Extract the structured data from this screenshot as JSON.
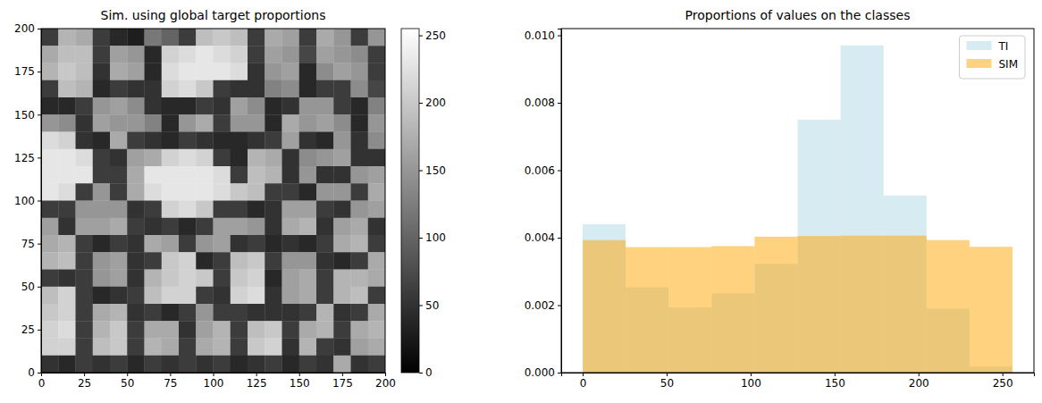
{
  "chart_data": [
    {
      "type": "heatmap",
      "title": "Sim. using global target proportions",
      "color": "gray",
      "xlim": [
        0,
        200
      ],
      "ylim": [
        0,
        200
      ],
      "xticks": [
        0,
        25,
        50,
        75,
        100,
        125,
        150,
        175,
        200
      ],
      "yticks": [
        0,
        25,
        50,
        75,
        100,
        125,
        150,
        175,
        200
      ],
      "cells": [
        [
          60,
          180,
          170,
          60,
          40,
          30,
          120,
          100,
          60,
          190,
          200,
          190,
          60,
          170,
          160,
          60,
          170,
          150,
          60,
          150
        ],
        [
          170,
          190,
          190,
          60,
          160,
          150,
          40,
          210,
          220,
          230,
          220,
          210,
          60,
          160,
          150,
          70,
          160,
          150,
          140,
          60
        ],
        [
          180,
          200,
          190,
          50,
          170,
          160,
          40,
          220,
          230,
          230,
          230,
          220,
          50,
          150,
          160,
          40,
          140,
          160,
          150,
          60
        ],
        [
          60,
          190,
          180,
          40,
          60,
          50,
          50,
          210,
          220,
          200,
          60,
          50,
          50,
          130,
          140,
          40,
          60,
          60,
          140,
          70
        ],
        [
          40,
          40,
          60,
          150,
          160,
          140,
          50,
          40,
          40,
          60,
          50,
          160,
          140,
          40,
          50,
          150,
          150,
          60,
          40,
          130
        ],
        [
          150,
          140,
          50,
          160,
          150,
          150,
          130,
          40,
          150,
          170,
          60,
          150,
          150,
          40,
          170,
          150,
          160,
          140,
          40,
          150
        ],
        [
          220,
          210,
          50,
          40,
          170,
          60,
          50,
          40,
          60,
          50,
          40,
          40,
          50,
          60,
          160,
          50,
          40,
          150,
          50,
          140
        ],
        [
          230,
          230,
          220,
          60,
          50,
          160,
          170,
          210,
          220,
          210,
          60,
          40,
          180,
          170,
          50,
          140,
          150,
          160,
          50,
          50
        ],
        [
          230,
          230,
          230,
          60,
          60,
          170,
          230,
          230,
          230,
          230,
          220,
          60,
          190,
          180,
          50,
          150,
          50,
          50,
          150,
          160
        ],
        [
          230,
          220,
          60,
          150,
          60,
          170,
          220,
          230,
          230,
          230,
          220,
          200,
          190,
          60,
          60,
          40,
          150,
          150,
          60,
          170
        ],
        [
          60,
          60,
          150,
          150,
          150,
          50,
          60,
          210,
          220,
          200,
          60,
          60,
          40,
          50,
          160,
          160,
          60,
          50,
          150,
          160
        ],
        [
          160,
          50,
          160,
          160,
          170,
          60,
          50,
          60,
          40,
          60,
          160,
          160,
          150,
          50,
          170,
          180,
          50,
          160,
          170,
          50
        ],
        [
          170,
          180,
          60,
          40,
          60,
          50,
          170,
          160,
          60,
          150,
          160,
          50,
          60,
          40,
          50,
          40,
          60,
          170,
          180,
          60
        ],
        [
          180,
          190,
          60,
          150,
          160,
          50,
          60,
          200,
          210,
          40,
          60,
          190,
          200,
          60,
          150,
          150,
          50,
          40,
          60,
          170
        ],
        [
          60,
          50,
          60,
          150,
          160,
          50,
          180,
          200,
          210,
          200,
          60,
          200,
          210,
          40,
          160,
          170,
          60,
          180,
          180,
          170
        ],
        [
          190,
          210,
          60,
          40,
          50,
          60,
          190,
          210,
          210,
          60,
          50,
          210,
          220,
          50,
          160,
          170,
          60,
          180,
          190,
          60
        ],
        [
          200,
          210,
          60,
          170,
          180,
          50,
          60,
          40,
          60,
          150,
          60,
          60,
          50,
          50,
          50,
          60,
          180,
          50,
          60,
          170
        ],
        [
          210,
          220,
          60,
          180,
          200,
          60,
          170,
          170,
          50,
          160,
          180,
          60,
          190,
          200,
          60,
          170,
          180,
          60,
          170,
          180
        ],
        [
          210,
          210,
          60,
          190,
          200,
          60,
          180,
          170,
          60,
          170,
          180,
          60,
          200,
          210,
          50,
          180,
          60,
          50,
          160,
          170
        ],
        [
          50,
          40,
          60,
          50,
          60,
          40,
          60,
          50,
          60,
          50,
          60,
          40,
          50,
          60,
          40,
          60,
          50,
          170,
          50,
          60
        ]
      ],
      "colorbar": {
        "range": [
          0,
          255
        ],
        "ticks": [
          0,
          50,
          100,
          150,
          200,
          250
        ]
      }
    },
    {
      "type": "histogram",
      "title": "Proportions of values on the classes",
      "bins": [
        0,
        25.6,
        51.2,
        76.8,
        102.4,
        128,
        153.6,
        179.2,
        204.8,
        230.4,
        256
      ],
      "series": [
        {
          "name": "TI",
          "color": "#add8e6",
          "values": [
            0.0044,
            0.00253,
            0.00193,
            0.00235,
            0.00322,
            0.0075,
            0.0097,
            0.00525,
            0.0019,
            0.00018
          ]
        },
        {
          "name": "SIM",
          "color": "#ffa500",
          "values": [
            0.00393,
            0.00372,
            0.00372,
            0.00375,
            0.00403,
            0.00405,
            0.00406,
            0.00406,
            0.00393,
            0.00373
          ]
        }
      ],
      "xlim": [
        -12.8,
        268.8
      ],
      "xticks": [
        0,
        50,
        100,
        150,
        200,
        250
      ],
      "ylim": [
        0,
        0.0102
      ],
      "yticks": [
        {
          "value": 0,
          "label": "0.000"
        },
        {
          "value": 0.002,
          "label": "0.002"
        },
        {
          "value": 0.004,
          "label": "0.004"
        },
        {
          "value": 0.006,
          "label": "0.006"
        },
        {
          "value": 0.008,
          "label": "0.008"
        },
        {
          "value": 0.01,
          "label": "0.010"
        }
      ],
      "legend": "upper right"
    }
  ]
}
